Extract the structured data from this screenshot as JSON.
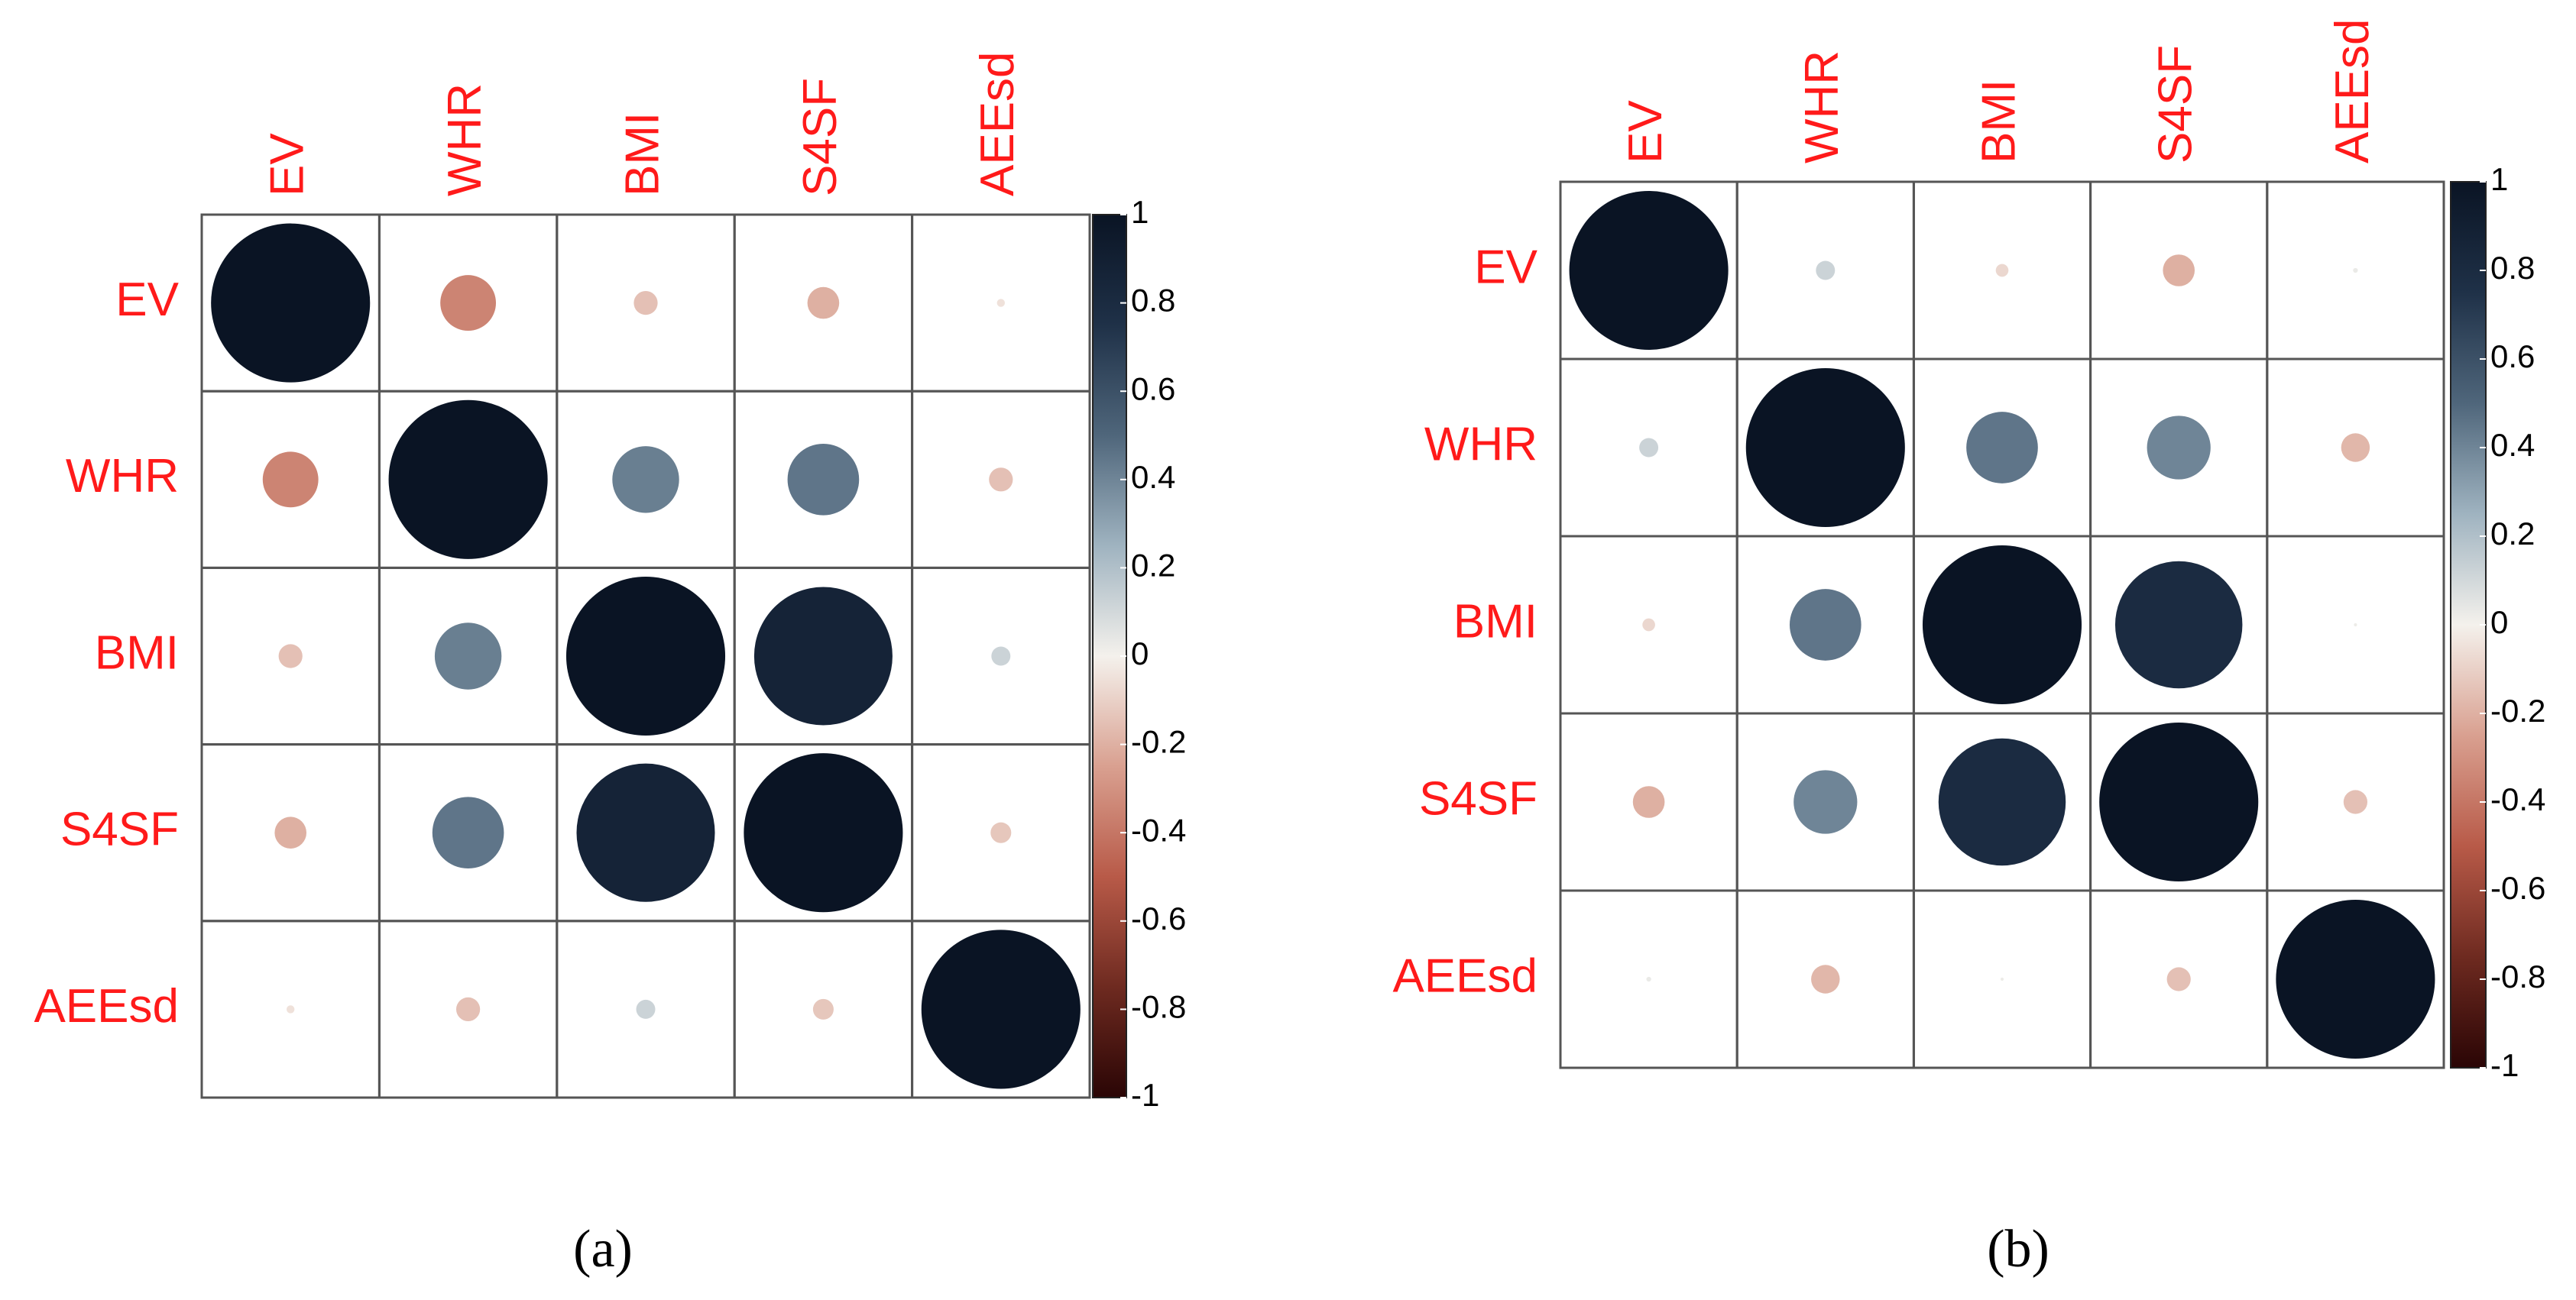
{
  "chart_data": [
    {
      "type": "corrplot",
      "caption": "(a)",
      "categories": [
        "EV",
        "WHR",
        "BMI",
        "S4SF",
        "AEEsd"
      ],
      "values": [
        [
          1,
          -0.35,
          -0.15,
          -0.2,
          -0.05
        ],
        [
          -0.35,
          1,
          0.42,
          0.45,
          -0.15
        ],
        [
          -0.15,
          0.42,
          1,
          0.87,
          0.12
        ],
        [
          -0.2,
          0.45,
          0.87,
          1,
          -0.13
        ],
        [
          -0.05,
          -0.15,
          0.12,
          -0.13,
          1
        ]
      ],
      "clim": [
        -1,
        1
      ],
      "cticks": [
        1,
        0.8,
        0.6,
        0.4,
        0.2,
        0,
        -0.2,
        -0.4,
        -0.6,
        -0.8,
        -1
      ],
      "color_stops": [
        "#2a0505",
        "#6e2a20",
        "#b85a48",
        "#d9a090",
        "#f4f1ec",
        "#9fb3c0",
        "#4f667b",
        "#1f3148",
        "#0a1424"
      ],
      "label_color": "#ff1a1a"
    },
    {
      "type": "corrplot",
      "caption": "(b)",
      "categories": [
        "EV",
        "WHR",
        "BMI",
        "S4SF",
        "AEEsd"
      ],
      "values": [
        [
          1,
          0.12,
          -0.08,
          -0.2,
          0.03
        ],
        [
          0.12,
          1,
          0.45,
          0.4,
          -0.18
        ],
        [
          -0.08,
          0.45,
          1,
          0.8,
          0.02
        ],
        [
          -0.2,
          0.4,
          0.8,
          1,
          -0.15
        ],
        [
          0.03,
          -0.18,
          0.02,
          -0.15,
          1
        ]
      ],
      "clim": [
        -1,
        1
      ],
      "cticks": [
        1,
        0.8,
        0.6,
        0.4,
        0.2,
        0,
        -0.2,
        -0.4,
        -0.6,
        -0.8,
        -1
      ],
      "color_stops": [
        "#2a0505",
        "#6e2a20",
        "#b85a48",
        "#d9a090",
        "#f4f1ec",
        "#9fb3c0",
        "#4f667b",
        "#1f3148",
        "#0a1424"
      ],
      "label_color": "#ff1a1a"
    }
  ]
}
